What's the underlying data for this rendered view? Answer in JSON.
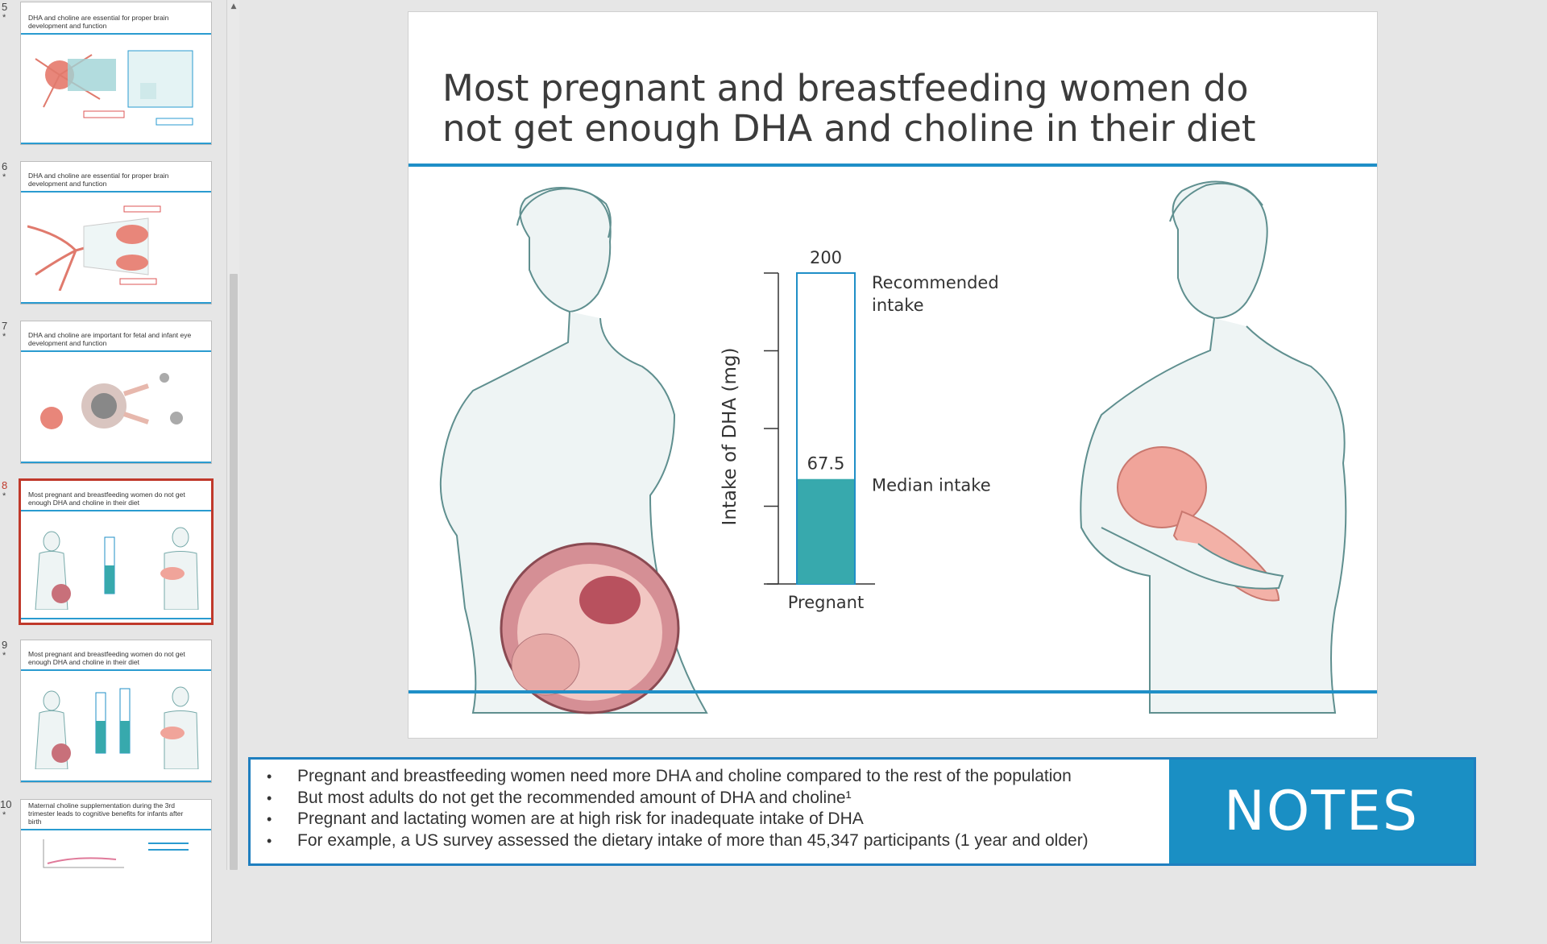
{
  "sidebar": {
    "slides": [
      {
        "number": "5",
        "star": "*",
        "title": "DHA and choline are essential for proper brain development and function",
        "active": false
      },
      {
        "number": "6",
        "star": "*",
        "title": "DHA and choline are essential for proper brain development and function",
        "active": false
      },
      {
        "number": "7",
        "star": "*",
        "title": "DHA and choline are important for fetal and infant eye development and function",
        "active": false
      },
      {
        "number": "8",
        "star": "*",
        "title": "Most pregnant and breastfeeding women do not get enough DHA and choline in their diet",
        "active": true
      },
      {
        "number": "9",
        "star": "*",
        "title": "Most pregnant and breastfeeding women do not get enough DHA and choline in their diet",
        "active": false
      },
      {
        "number": "10",
        "star": "*",
        "title": "Maternal choline supplementation during the 3rd trimester leads to cognitive benefits for infants after birth",
        "active": false
      }
    ]
  },
  "slide": {
    "title_line1": "Most pregnant and breastfeeding women do",
    "title_line2": "not get enough DHA and choline in their diet"
  },
  "chart_data": {
    "type": "bar",
    "categories": [
      "Pregnant"
    ],
    "series": [
      {
        "name": "Median intake",
        "values": [
          67.5
        ]
      },
      {
        "name": "Recommended intake",
        "values": [
          200
        ]
      }
    ],
    "data_labels": [
      "200",
      "67.5"
    ],
    "annotations": [
      "Recommended intake",
      "Median intake"
    ],
    "ylabel": "Intake of DHA (mg)",
    "xlabel": "",
    "ylim": [
      0,
      200
    ],
    "colors": {
      "median": "#37a9ad",
      "recommended": "#ffffff",
      "outline": "#1f8fc7"
    }
  },
  "notes": {
    "items": [
      "Pregnant and breastfeeding women need more DHA and choline compared to the rest of the population",
      "But most adults do not get the recommended amount of DHA and choline¹",
      "Pregnant and lactating women are at high risk for inadequate intake of DHA",
      "For example, a US survey assessed the dietary intake of more than 45,347 participants (1 year and older)"
    ],
    "banner": "NOTES"
  }
}
